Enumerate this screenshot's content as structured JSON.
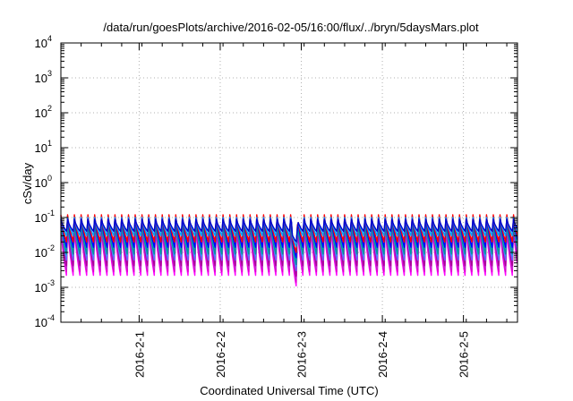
{
  "chart_data": {
    "type": "line",
    "title": "/data/run/goesPlots/archive/2016-02-05/16:00/flux/../bryn/5daysMars.plot",
    "xlabel": "Coordinated Universal Time (UTC)",
    "ylabel": "cSv/day",
    "yscale": "log",
    "ylim": [
      0.0001,
      10000
    ],
    "y_ticks": [
      {
        "value": 0.0001,
        "mantissa": "10",
        "exp": "-4"
      },
      {
        "value": 0.001,
        "mantissa": "10",
        "exp": "-3"
      },
      {
        "value": 0.01,
        "mantissa": "10",
        "exp": "-2"
      },
      {
        "value": 0.1,
        "mantissa": "10",
        "exp": "-1"
      },
      {
        "value": 1,
        "mantissa": "10",
        "exp": "0"
      },
      {
        "value": 10,
        "mantissa": "10",
        "exp": "1"
      },
      {
        "value": 100,
        "mantissa": "10",
        "exp": "2"
      },
      {
        "value": 1000,
        "mantissa": "10",
        "exp": "3"
      },
      {
        "value": 10000,
        "mantissa": "10",
        "exp": "4"
      }
    ],
    "xlim": [
      "2016-01-31T00:50",
      "2016-02-05T16:00"
    ],
    "x_ticks": [
      {
        "value": "2016-02-01T00:00",
        "label": "2016-2-1"
      },
      {
        "value": "2016-02-02T00:00",
        "label": "2016-2-2"
      },
      {
        "value": "2016-02-03T00:00",
        "label": "2016-2-3"
      },
      {
        "value": "2016-02-04T00:00",
        "label": "2016-2-4"
      },
      {
        "value": "2016-02-05T00:00",
        "label": "2016-2-5"
      }
    ],
    "grid": true,
    "pattern": {
      "period_hours": 2.0,
      "first_peak": "2016-01-31T00:50",
      "dip": {
        "time": "2016-02-02T22:10",
        "factor": 0.5
      }
    },
    "series": [
      {
        "color": "#ff00ff",
        "peak": 0.055,
        "trough": 0.0022
      },
      {
        "color": "#dd00cc",
        "peak": 0.065,
        "trough": 0.0028
      },
      {
        "color": "#bb33cc",
        "peak": 0.07,
        "trough": 0.0035
      },
      {
        "color": "#aa0099",
        "peak": 0.085,
        "trough": 0.0042
      },
      {
        "color": "#6666ff",
        "peak": 0.09,
        "trough": 0.006
      },
      {
        "color": "#3399ff",
        "peak": 0.095,
        "trough": 0.008
      },
      {
        "color": "#00ccdd",
        "peak": 0.08,
        "trough": 0.011
      },
      {
        "color": "#009999",
        "peak": 0.075,
        "trough": 0.009
      },
      {
        "color": "#0000ff",
        "peak": 0.11,
        "trough": 0.014
      },
      {
        "color": "#ff0000",
        "peak": 0.12,
        "trough": 0.02
      },
      {
        "color": "#00a0ff",
        "peak": 0.1,
        "trough": 0.03
      },
      {
        "color": "#0000cc",
        "peak": 0.09,
        "trough": 0.04
      }
    ]
  }
}
